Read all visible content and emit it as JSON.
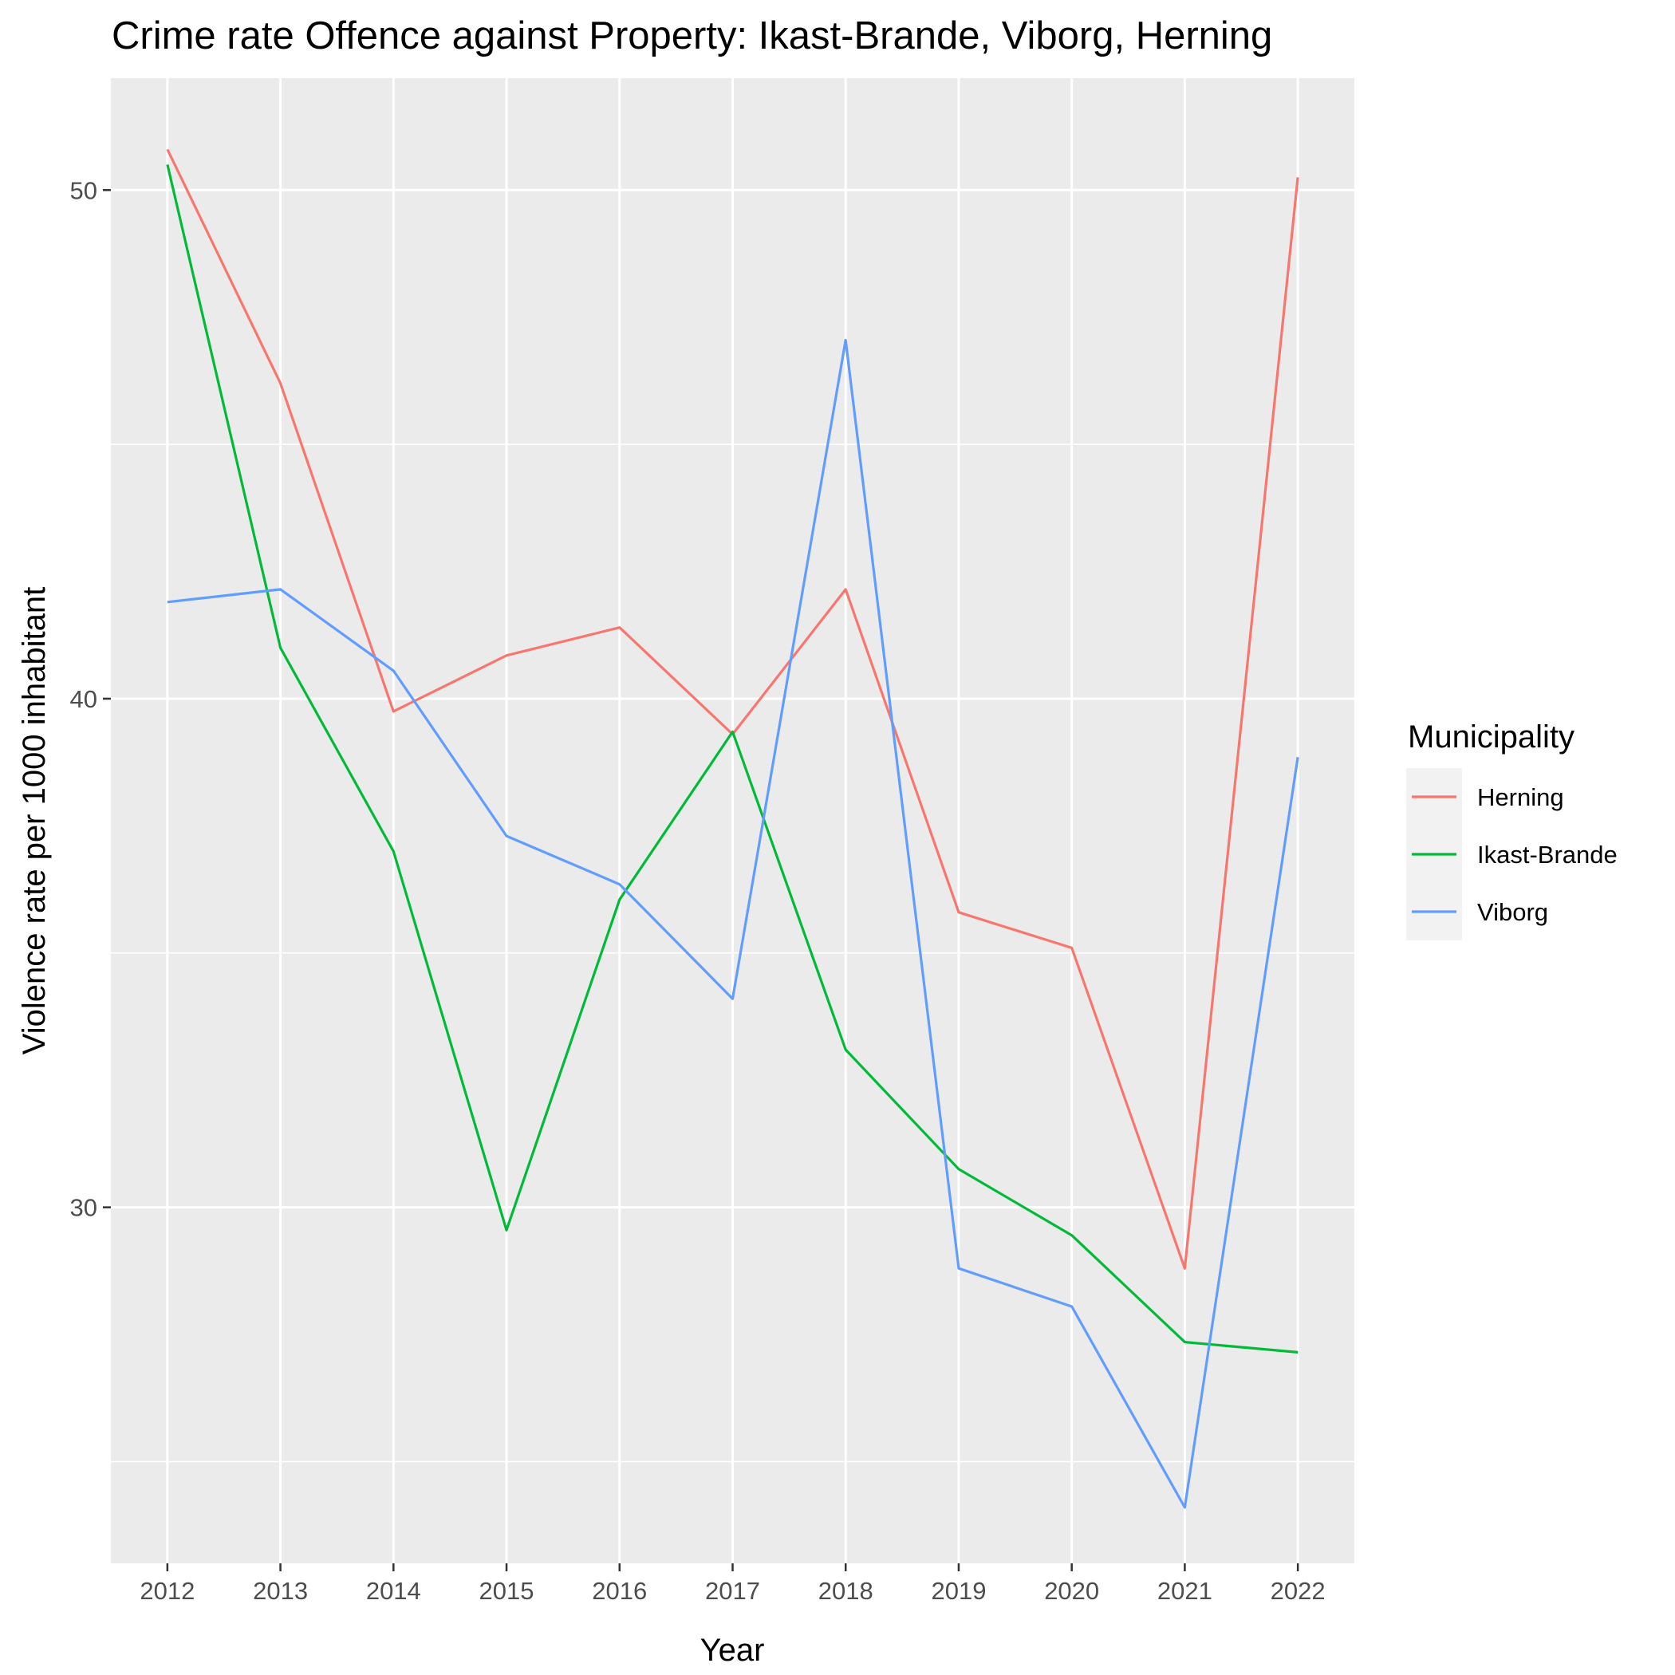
{
  "chart_data": {
    "type": "line",
    "title": "Crime rate Offence against Property: Ikast-Brande, Viborg, Herning",
    "xlabel": "Year",
    "ylabel": "Violence rate per 1000 inhabitant",
    "x": [
      2012,
      2013,
      2014,
      2015,
      2016,
      2017,
      2018,
      2019,
      2020,
      2021,
      2022
    ],
    "x_tick_labels": [
      "2012",
      "2013",
      "2014",
      "2015",
      "2016",
      "2017",
      "2018",
      "2019",
      "2020",
      "2021",
      "2022"
    ],
    "y_ticks": [
      30,
      40,
      50
    ],
    "y_tick_labels": [
      "30",
      "40",
      "50"
    ],
    "ylim": [
      23.0,
      52.2
    ],
    "grid": true,
    "legend": {
      "title": "Municipality",
      "placement": "right"
    },
    "series": [
      {
        "name": "Herning",
        "color": "#F8766D",
        "values": [
          50.8,
          46.2,
          39.75,
          40.85,
          41.4,
          39.3,
          42.15,
          35.8,
          35.1,
          28.8,
          50.25
        ]
      },
      {
        "name": "Ikast-Brande",
        "color": "#00BA38",
        "values": [
          50.5,
          41.0,
          37.0,
          29.55,
          36.05,
          39.35,
          33.1,
          30.75,
          29.45,
          27.35,
          27.15
        ]
      },
      {
        "name": "Viborg",
        "color": "#619CFF",
        "values": [
          41.9,
          42.15,
          40.55,
          37.3,
          36.35,
          34.1,
          47.05,
          28.8,
          28.05,
          24.1,
          38.85
        ]
      }
    ],
    "style": {
      "panel_background": "#EBEBEB",
      "grid_color": "#FFFFFF"
    }
  }
}
